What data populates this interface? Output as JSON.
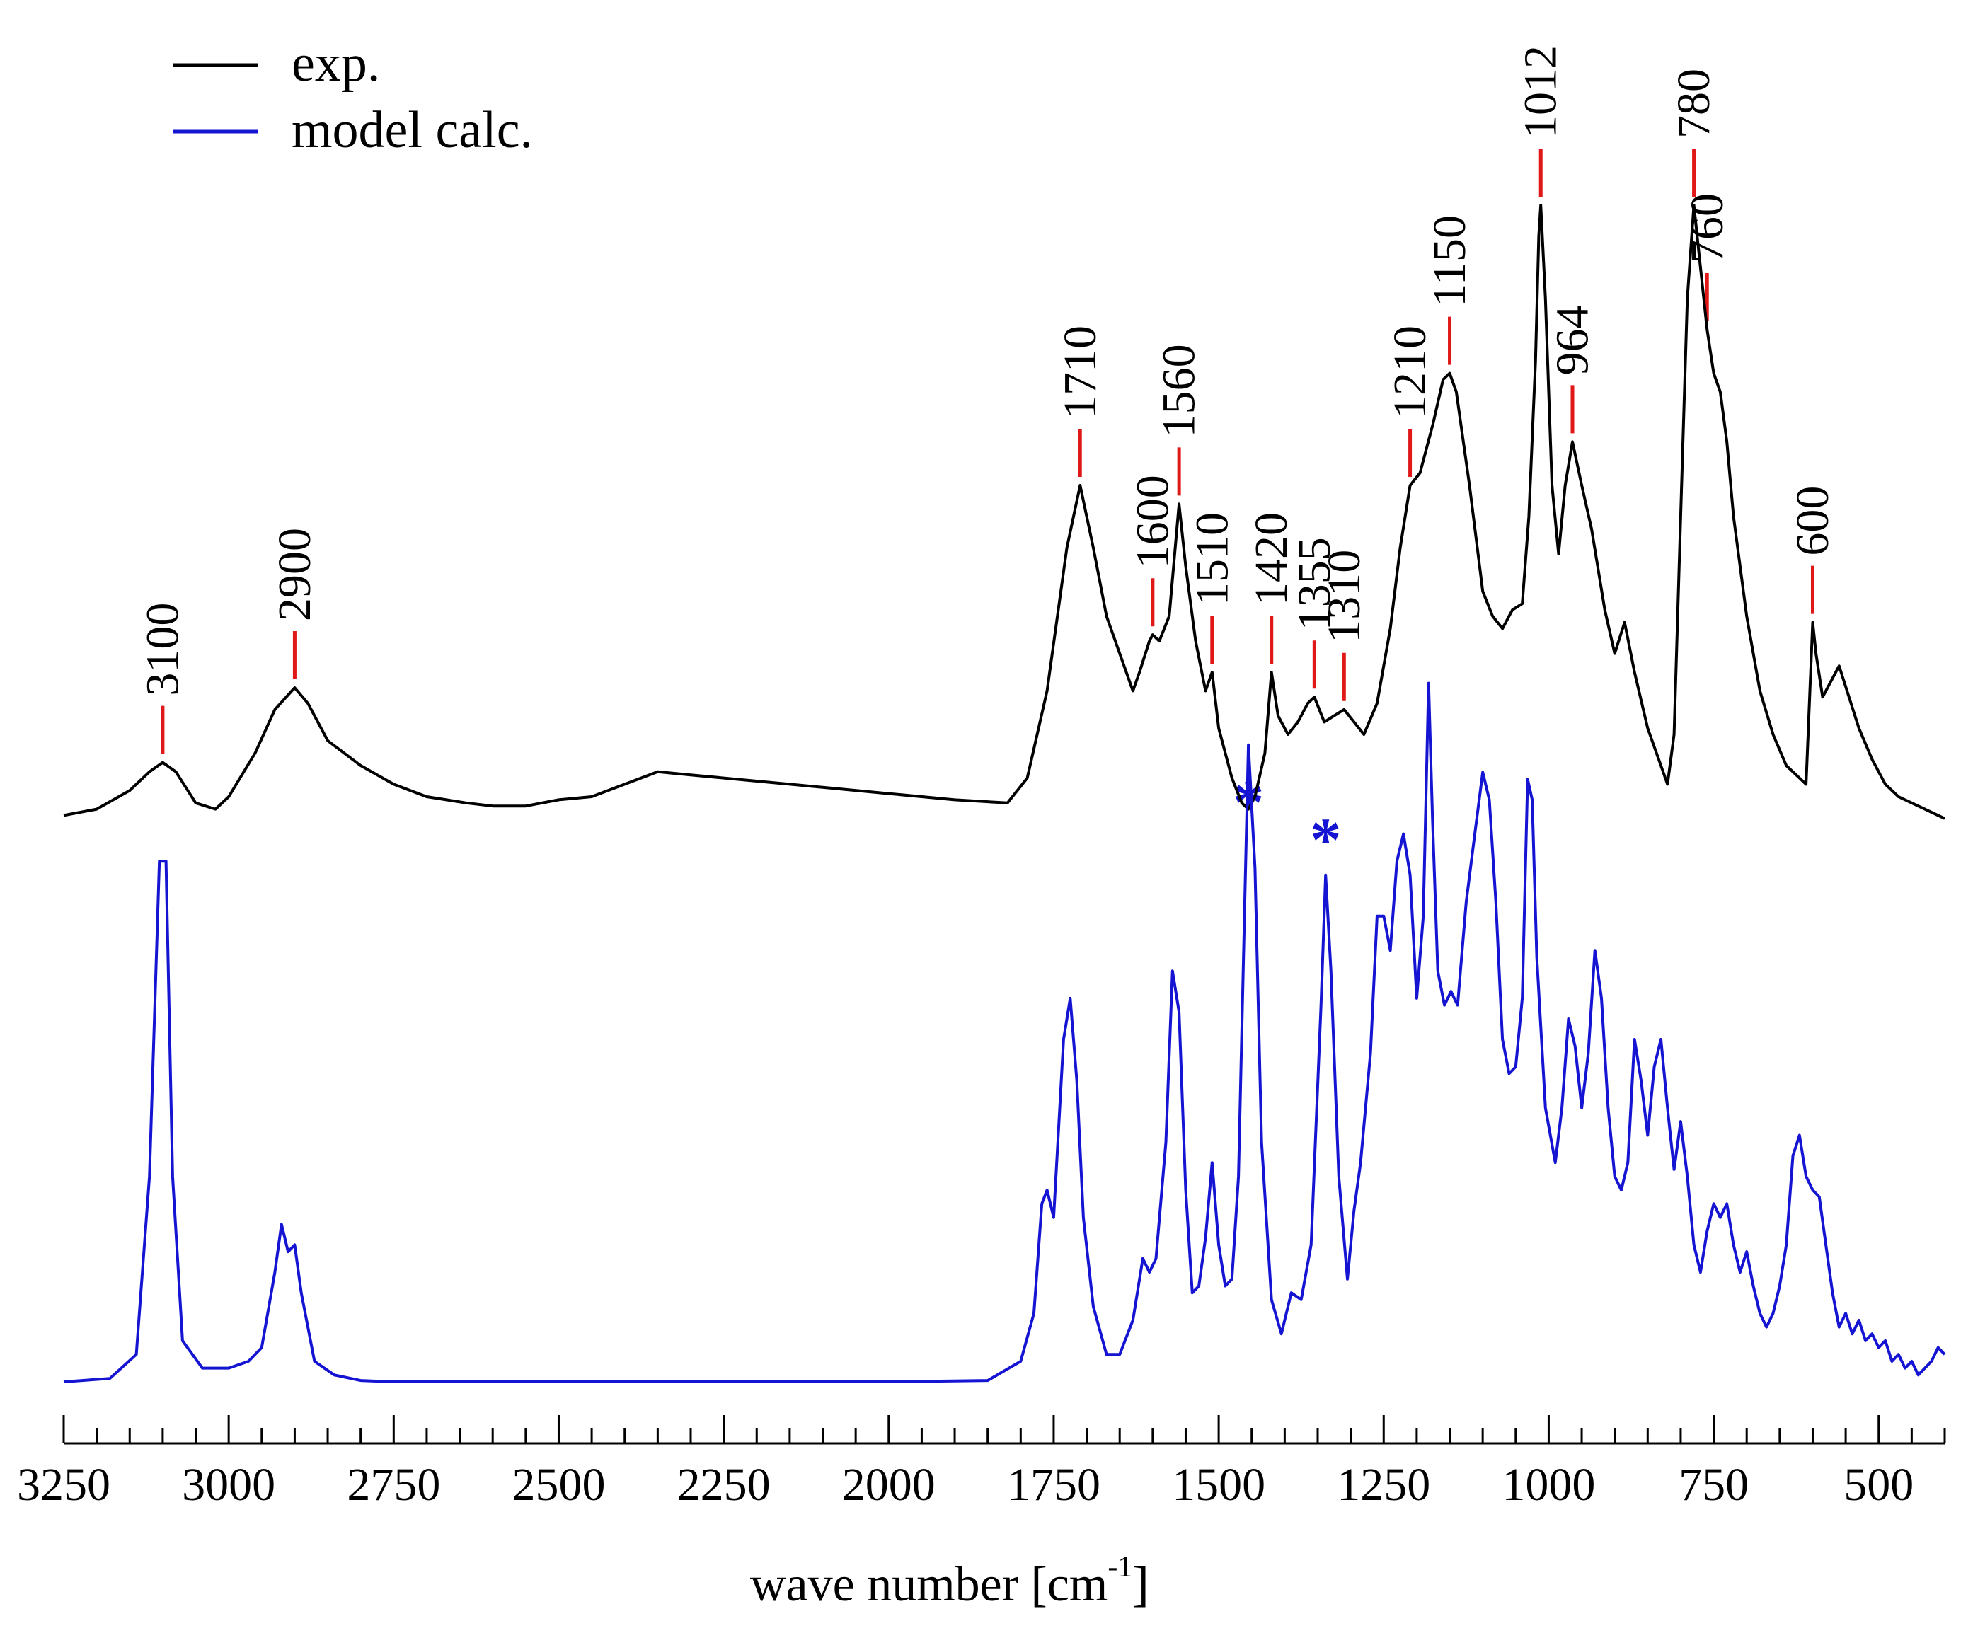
{
  "chart_data": {
    "type": "line",
    "title": "",
    "xlabel": "wave number [cm",
    "xlabel_superscript": "-1",
    "xlabel_close": "]",
    "ylabel": "",
    "xlim": [
      3250,
      400
    ],
    "x_reversed": true,
    "x_ticks": [
      3250,
      3000,
      2750,
      2500,
      2250,
      2000,
      1750,
      1500,
      1250,
      1000,
      750,
      500
    ],
    "x_minor_tick_step": 50,
    "grid": false,
    "legend": {
      "position": "top-left",
      "entries": [
        {
          "label": "exp.",
          "color": "#000000"
        },
        {
          "label": "model calc.",
          "color": "#1414d2"
        }
      ]
    },
    "series": [
      {
        "name": "exp.",
        "color": "#000000",
        "peak_labels": [
          3100,
          2900,
          1710,
          1600,
          1560,
          1510,
          1420,
          1355,
          1310,
          1210,
          1150,
          1012,
          964,
          780,
          760,
          600
        ],
        "points": [
          [
            3250,
            0.02
          ],
          [
            3200,
            0.03
          ],
          [
            3150,
            0.06
          ],
          [
            3120,
            0.09
          ],
          [
            3100,
            0.105
          ],
          [
            3080,
            0.09
          ],
          [
            3050,
            0.04
          ],
          [
            3020,
            0.03
          ],
          [
            3000,
            0.05
          ],
          [
            2960,
            0.12
          ],
          [
            2930,
            0.19
          ],
          [
            2900,
            0.225
          ],
          [
            2880,
            0.2
          ],
          [
            2850,
            0.14
          ],
          [
            2800,
            0.1
          ],
          [
            2750,
            0.07
          ],
          [
            2700,
            0.05
          ],
          [
            2640,
            0.04
          ],
          [
            2600,
            0.035
          ],
          [
            2550,
            0.035
          ],
          [
            2500,
            0.045
          ],
          [
            2450,
            0.05
          ],
          [
            2400,
            0.07
          ],
          [
            2350,
            0.09
          ],
          [
            2300,
            0.085
          ],
          [
            2200,
            0.075
          ],
          [
            2100,
            0.065
          ],
          [
            2000,
            0.055
          ],
          [
            1900,
            0.045
          ],
          [
            1820,
            0.04
          ],
          [
            1790,
            0.08
          ],
          [
            1760,
            0.22
          ],
          [
            1730,
            0.45
          ],
          [
            1710,
            0.55
          ],
          [
            1690,
            0.45
          ],
          [
            1670,
            0.34
          ],
          [
            1650,
            0.28
          ],
          [
            1630,
            0.22
          ],
          [
            1620,
            0.25
          ],
          [
            1605,
            0.3
          ],
          [
            1600,
            0.31
          ],
          [
            1590,
            0.3
          ],
          [
            1575,
            0.34
          ],
          [
            1560,
            0.52
          ],
          [
            1550,
            0.42
          ],
          [
            1535,
            0.3
          ],
          [
            1520,
            0.22
          ],
          [
            1510,
            0.25
          ],
          [
            1500,
            0.16
          ],
          [
            1480,
            0.08
          ],
          [
            1465,
            0.04
          ],
          [
            1455,
            0.03
          ],
          [
            1445,
            0.05
          ],
          [
            1430,
            0.12
          ],
          [
            1420,
            0.25
          ],
          [
            1410,
            0.18
          ],
          [
            1395,
            0.15
          ],
          [
            1380,
            0.17
          ],
          [
            1365,
            0.2
          ],
          [
            1355,
            0.21
          ],
          [
            1340,
            0.17
          ],
          [
            1325,
            0.18
          ],
          [
            1310,
            0.19
          ],
          [
            1295,
            0.17
          ],
          [
            1280,
            0.15
          ],
          [
            1260,
            0.2
          ],
          [
            1240,
            0.32
          ],
          [
            1225,
            0.45
          ],
          [
            1210,
            0.55
          ],
          [
            1195,
            0.57
          ],
          [
            1175,
            0.65
          ],
          [
            1160,
            0.72
          ],
          [
            1150,
            0.73
          ],
          [
            1140,
            0.7
          ],
          [
            1120,
            0.55
          ],
          [
            1100,
            0.38
          ],
          [
            1085,
            0.34
          ],
          [
            1070,
            0.32
          ],
          [
            1055,
            0.35
          ],
          [
            1040,
            0.36
          ],
          [
            1030,
            0.5
          ],
          [
            1020,
            0.75
          ],
          [
            1015,
            0.95
          ],
          [
            1012,
            1.0
          ],
          [
            1005,
            0.85
          ],
          [
            995,
            0.55
          ],
          [
            985,
            0.44
          ],
          [
            975,
            0.55
          ],
          [
            964,
            0.62
          ],
          [
            950,
            0.55
          ],
          [
            935,
            0.48
          ],
          [
            915,
            0.35
          ],
          [
            900,
            0.28
          ],
          [
            885,
            0.33
          ],
          [
            870,
            0.25
          ],
          [
            850,
            0.16
          ],
          [
            830,
            0.1
          ],
          [
            820,
            0.07
          ],
          [
            810,
            0.15
          ],
          [
            800,
            0.5
          ],
          [
            790,
            0.85
          ],
          [
            780,
            1.0
          ],
          [
            770,
            0.9
          ],
          [
            760,
            0.8
          ],
          [
            750,
            0.73
          ],
          [
            740,
            0.7
          ],
          [
            730,
            0.62
          ],
          [
            720,
            0.5
          ],
          [
            700,
            0.34
          ],
          [
            680,
            0.22
          ],
          [
            660,
            0.15
          ],
          [
            640,
            0.1
          ],
          [
            620,
            0.08
          ],
          [
            610,
            0.07
          ],
          [
            605,
            0.2
          ],
          [
            600,
            0.33
          ],
          [
            595,
            0.28
          ],
          [
            585,
            0.21
          ],
          [
            575,
            0.23
          ],
          [
            560,
            0.26
          ],
          [
            545,
            0.21
          ],
          [
            530,
            0.16
          ],
          [
            510,
            0.11
          ],
          [
            490,
            0.07
          ],
          [
            470,
            0.05
          ],
          [
            450,
            0.04
          ],
          [
            430,
            0.03
          ],
          [
            410,
            0.02
          ],
          [
            400,
            0.015
          ]
        ]
      },
      {
        "name": "model calc.",
        "color": "#1414d2",
        "points": [
          [
            3250,
            0.0
          ],
          [
            3180,
            0.005
          ],
          [
            3140,
            0.04
          ],
          [
            3120,
            0.3
          ],
          [
            3105,
            0.76
          ],
          [
            3095,
            0.76
          ],
          [
            3085,
            0.3
          ],
          [
            3070,
            0.06
          ],
          [
            3040,
            0.02
          ],
          [
            3000,
            0.02
          ],
          [
            2970,
            0.03
          ],
          [
            2950,
            0.05
          ],
          [
            2930,
            0.16
          ],
          [
            2920,
            0.23
          ],
          [
            2910,
            0.19
          ],
          [
            2900,
            0.2
          ],
          [
            2890,
            0.13
          ],
          [
            2870,
            0.03
          ],
          [
            2840,
            0.01
          ],
          [
            2800,
            0.002
          ],
          [
            2750,
            0.0
          ],
          [
            2500,
            0.0
          ],
          [
            2250,
            0.0
          ],
          [
            2000,
            0.0
          ],
          [
            1850,
            0.002
          ],
          [
            1800,
            0.03
          ],
          [
            1780,
            0.1
          ],
          [
            1768,
            0.26
          ],
          [
            1760,
            0.28
          ],
          [
            1750,
            0.24
          ],
          [
            1735,
            0.5
          ],
          [
            1725,
            0.56
          ],
          [
            1715,
            0.44
          ],
          [
            1705,
            0.24
          ],
          [
            1690,
            0.11
          ],
          [
            1670,
            0.04
          ],
          [
            1650,
            0.04
          ],
          [
            1630,
            0.09
          ],
          [
            1615,
            0.18
          ],
          [
            1605,
            0.16
          ],
          [
            1595,
            0.18
          ],
          [
            1580,
            0.35
          ],
          [
            1570,
            0.6
          ],
          [
            1560,
            0.54
          ],
          [
            1550,
            0.28
          ],
          [
            1540,
            0.13
          ],
          [
            1530,
            0.14
          ],
          [
            1520,
            0.21
          ],
          [
            1510,
            0.32
          ],
          [
            1500,
            0.2
          ],
          [
            1490,
            0.14
          ],
          [
            1480,
            0.15
          ],
          [
            1470,
            0.3
          ],
          [
            1460,
            0.72
          ],
          [
            1455,
            0.93
          ],
          [
            1445,
            0.75
          ],
          [
            1435,
            0.35
          ],
          [
            1420,
            0.12
          ],
          [
            1405,
            0.07
          ],
          [
            1390,
            0.13
          ],
          [
            1375,
            0.12
          ],
          [
            1360,
            0.2
          ],
          [
            1345,
            0.55
          ],
          [
            1338,
            0.74
          ],
          [
            1330,
            0.6
          ],
          [
            1318,
            0.3
          ],
          [
            1305,
            0.15
          ],
          [
            1295,
            0.25
          ],
          [
            1285,
            0.32
          ],
          [
            1270,
            0.48
          ],
          [
            1260,
            0.68
          ],
          [
            1250,
            0.68
          ],
          [
            1240,
            0.63
          ],
          [
            1230,
            0.76
          ],
          [
            1220,
            0.8
          ],
          [
            1210,
            0.74
          ],
          [
            1200,
            0.56
          ],
          [
            1190,
            0.68
          ],
          [
            1182,
            1.02
          ],
          [
            1176,
            0.82
          ],
          [
            1168,
            0.6
          ],
          [
            1158,
            0.55
          ],
          [
            1148,
            0.57
          ],
          [
            1138,
            0.55
          ],
          [
            1125,
            0.7
          ],
          [
            1112,
            0.8
          ],
          [
            1100,
            0.89
          ],
          [
            1090,
            0.85
          ],
          [
            1080,
            0.7
          ],
          [
            1070,
            0.5
          ],
          [
            1060,
            0.45
          ],
          [
            1050,
            0.46
          ],
          [
            1040,
            0.56
          ],
          [
            1032,
            0.88
          ],
          [
            1025,
            0.85
          ],
          [
            1018,
            0.62
          ],
          [
            1005,
            0.4
          ],
          [
            990,
            0.32
          ],
          [
            980,
            0.4
          ],
          [
            970,
            0.53
          ],
          [
            960,
            0.49
          ],
          [
            950,
            0.4
          ],
          [
            940,
            0.48
          ],
          [
            930,
            0.63
          ],
          [
            920,
            0.56
          ],
          [
            910,
            0.4
          ],
          [
            900,
            0.3
          ],
          [
            890,
            0.28
          ],
          [
            880,
            0.32
          ],
          [
            870,
            0.5
          ],
          [
            860,
            0.44
          ],
          [
            850,
            0.36
          ],
          [
            840,
            0.46
          ],
          [
            830,
            0.5
          ],
          [
            820,
            0.4
          ],
          [
            810,
            0.31
          ],
          [
            800,
            0.38
          ],
          [
            790,
            0.3
          ],
          [
            780,
            0.2
          ],
          [
            770,
            0.16
          ],
          [
            760,
            0.22
          ],
          [
            750,
            0.26
          ],
          [
            740,
            0.24
          ],
          [
            730,
            0.26
          ],
          [
            720,
            0.2
          ],
          [
            710,
            0.16
          ],
          [
            700,
            0.19
          ],
          [
            690,
            0.14
          ],
          [
            680,
            0.1
          ],
          [
            670,
            0.08
          ],
          [
            660,
            0.1
          ],
          [
            650,
            0.14
          ],
          [
            640,
            0.2
          ],
          [
            630,
            0.33
          ],
          [
            620,
            0.36
          ],
          [
            610,
            0.3
          ],
          [
            600,
            0.28
          ],
          [
            590,
            0.27
          ],
          [
            580,
            0.2
          ],
          [
            570,
            0.13
          ],
          [
            560,
            0.08
          ],
          [
            550,
            0.1
          ],
          [
            540,
            0.07
          ],
          [
            530,
            0.09
          ],
          [
            520,
            0.06
          ],
          [
            510,
            0.07
          ],
          [
            500,
            0.05
          ],
          [
            490,
            0.06
          ],
          [
            480,
            0.03
          ],
          [
            470,
            0.04
          ],
          [
            460,
            0.02
          ],
          [
            450,
            0.03
          ],
          [
            440,
            0.01
          ],
          [
            430,
            0.02
          ],
          [
            420,
            0.03
          ],
          [
            410,
            0.05
          ],
          [
            400,
            0.04
          ]
        ]
      }
    ],
    "annotations": [
      {
        "text": "*",
        "x": 1455,
        "series": "exp.",
        "color": "#1414d2"
      },
      {
        "text": "*",
        "x": 1338,
        "series": "model calc.",
        "color": "#1414d2"
      }
    ]
  }
}
